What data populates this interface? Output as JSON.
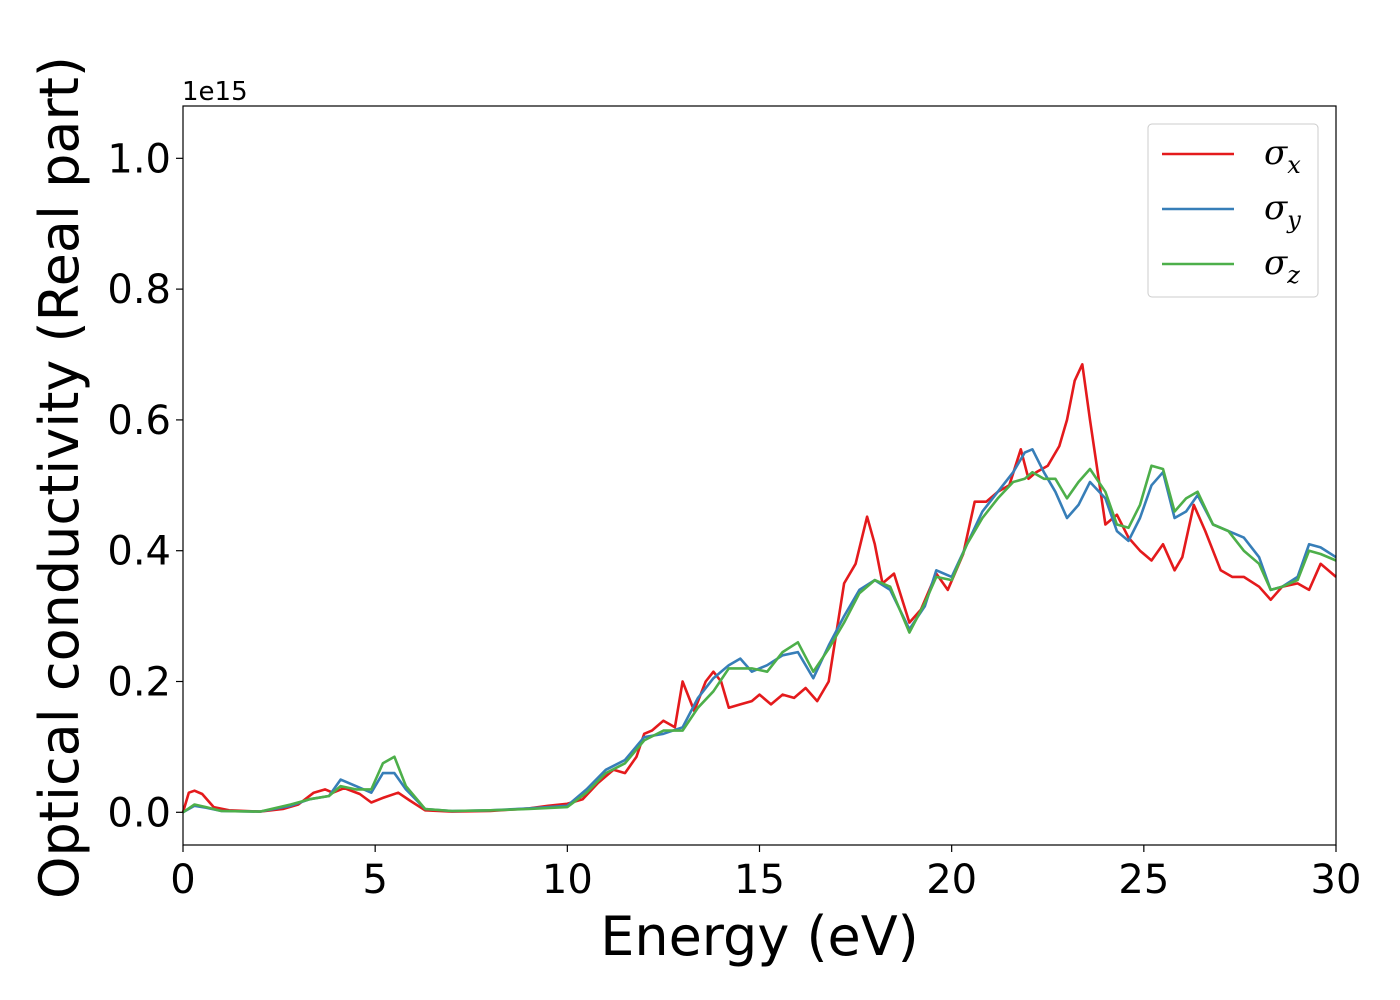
{
  "chart_data": {
    "type": "line",
    "xlabel": "Energy (eV)",
    "ylabel": "Optical conductivity (Real part)",
    "y_offset_label": "1e15",
    "xlim": [
      0,
      30
    ],
    "ylim": [
      -0.05,
      1.08
    ],
    "x_ticks": [
      0,
      5,
      10,
      15,
      20,
      25,
      30
    ],
    "x_tick_labels": [
      "0",
      "5",
      "10",
      "15",
      "20",
      "25",
      "30"
    ],
    "y_ticks": [
      0.0,
      0.2,
      0.4,
      0.6,
      0.8,
      1.0
    ],
    "y_tick_labels": [
      "0.0",
      "0.2",
      "0.4",
      "0.6",
      "0.8",
      "1.0"
    ],
    "grid": false,
    "legend_position": "top-right",
    "series": [
      {
        "name": "σx",
        "name_base": "σ",
        "name_sub": "x",
        "color": "#e41a1c",
        "x": [
          0,
          0.15,
          0.3,
          0.5,
          0.8,
          1.2,
          2.0,
          2.6,
          3.0,
          3.4,
          3.7,
          3.9,
          4.2,
          4.6,
          4.9,
          5.2,
          5.6,
          5.9,
          6.3,
          7.0,
          8.0,
          9.0,
          9.5,
          10.0,
          10.4,
          10.8,
          11.2,
          11.5,
          11.8,
          12.0,
          12.2,
          12.5,
          12.8,
          13.0,
          13.3,
          13.6,
          13.8,
          14.0,
          14.2,
          14.5,
          14.8,
          15.0,
          15.3,
          15.6,
          15.9,
          16.2,
          16.5,
          16.8,
          17.2,
          17.5,
          17.8,
          18.0,
          18.2,
          18.5,
          18.9,
          19.2,
          19.6,
          19.9,
          20.3,
          20.6,
          20.9,
          21.2,
          21.5,
          21.8,
          22.0,
          22.2,
          22.5,
          22.8,
          23.0,
          23.2,
          23.4,
          23.6,
          23.8,
          24.0,
          24.3,
          24.6,
          24.9,
          25.2,
          25.5,
          25.8,
          26.0,
          26.3,
          26.6,
          27.0,
          27.3,
          27.6,
          28.0,
          28.3,
          28.6,
          29.0,
          29.3,
          29.6,
          30.0
        ],
        "y": [
          0.0,
          0.03,
          0.033,
          0.028,
          0.008,
          0.003,
          0.001,
          0.005,
          0.012,
          0.03,
          0.035,
          0.03,
          0.037,
          0.028,
          0.015,
          0.022,
          0.03,
          0.018,
          0.003,
          0.001,
          0.002,
          0.006,
          0.01,
          0.013,
          0.02,
          0.045,
          0.065,
          0.06,
          0.085,
          0.12,
          0.125,
          0.14,
          0.13,
          0.2,
          0.155,
          0.2,
          0.215,
          0.2,
          0.16,
          0.165,
          0.17,
          0.18,
          0.165,
          0.18,
          0.175,
          0.19,
          0.17,
          0.2,
          0.35,
          0.38,
          0.452,
          0.41,
          0.35,
          0.365,
          0.29,
          0.31,
          0.365,
          0.34,
          0.395,
          0.475,
          0.475,
          0.49,
          0.5,
          0.555,
          0.51,
          0.52,
          0.53,
          0.56,
          0.6,
          0.66,
          0.685,
          0.6,
          0.52,
          0.44,
          0.455,
          0.42,
          0.4,
          0.385,
          0.41,
          0.37,
          0.39,
          0.47,
          0.43,
          0.37,
          0.36,
          0.36,
          0.345,
          0.325,
          0.345,
          0.35,
          0.34,
          0.38,
          0.36
        ]
      },
      {
        "name": "σy",
        "name_base": "σ",
        "name_sub": "y",
        "color": "#377eb8",
        "x": [
          0,
          0.3,
          0.6,
          1.0,
          2.0,
          2.8,
          3.3,
          3.8,
          4.1,
          4.5,
          4.9,
          5.2,
          5.5,
          5.8,
          6.3,
          7.0,
          8.0,
          9.0,
          10.0,
          10.5,
          11.0,
          11.5,
          12.0,
          12.5,
          13.0,
          13.4,
          13.8,
          14.2,
          14.5,
          14.8,
          15.2,
          15.6,
          16.0,
          16.4,
          16.8,
          17.2,
          17.6,
          18.0,
          18.4,
          18.9,
          19.3,
          19.6,
          20.0,
          20.4,
          20.8,
          21.2,
          21.6,
          21.9,
          22.1,
          22.4,
          22.7,
          23.0,
          23.3,
          23.6,
          24.0,
          24.3,
          24.6,
          24.9,
          25.2,
          25.5,
          25.8,
          26.1,
          26.4,
          26.8,
          27.2,
          27.6,
          28.0,
          28.3,
          28.6,
          29.0,
          29.3,
          29.6,
          30.0
        ],
        "y": [
          0.0,
          0.01,
          0.007,
          0.002,
          0.001,
          0.01,
          0.02,
          0.025,
          0.05,
          0.04,
          0.03,
          0.06,
          0.06,
          0.035,
          0.005,
          0.002,
          0.003,
          0.006,
          0.01,
          0.035,
          0.065,
          0.08,
          0.115,
          0.12,
          0.13,
          0.175,
          0.205,
          0.225,
          0.235,
          0.215,
          0.225,
          0.24,
          0.245,
          0.205,
          0.255,
          0.3,
          0.34,
          0.355,
          0.34,
          0.28,
          0.315,
          0.37,
          0.36,
          0.41,
          0.46,
          0.49,
          0.52,
          0.55,
          0.555,
          0.52,
          0.49,
          0.45,
          0.47,
          0.505,
          0.48,
          0.43,
          0.415,
          0.45,
          0.5,
          0.52,
          0.45,
          0.46,
          0.485,
          0.44,
          0.43,
          0.42,
          0.39,
          0.34,
          0.345,
          0.36,
          0.41,
          0.405,
          0.39
        ]
      },
      {
        "name": "σz",
        "name_base": "σ",
        "name_sub": "z",
        "color": "#4daf4a",
        "x": [
          0,
          0.3,
          0.6,
          1.0,
          2.0,
          2.8,
          3.3,
          3.8,
          4.1,
          4.5,
          4.9,
          5.2,
          5.5,
          5.8,
          6.3,
          7.0,
          8.0,
          9.0,
          10.0,
          10.5,
          11.0,
          11.5,
          12.0,
          12.5,
          13.0,
          13.4,
          13.8,
          14.2,
          14.5,
          14.8,
          15.2,
          15.6,
          16.0,
          16.4,
          16.8,
          17.2,
          17.6,
          18.0,
          18.4,
          18.9,
          19.3,
          19.6,
          20.0,
          20.4,
          20.8,
          21.2,
          21.6,
          21.9,
          22.1,
          22.4,
          22.7,
          23.0,
          23.3,
          23.6,
          24.0,
          24.3,
          24.6,
          24.9,
          25.2,
          25.5,
          25.8,
          26.1,
          26.4,
          26.8,
          27.2,
          27.6,
          28.0,
          28.3,
          28.6,
          29.0,
          29.3,
          29.6,
          30.0
        ],
        "y": [
          0.0,
          0.012,
          0.008,
          0.002,
          0.001,
          0.012,
          0.02,
          0.025,
          0.04,
          0.035,
          0.035,
          0.075,
          0.085,
          0.04,
          0.005,
          0.002,
          0.003,
          0.005,
          0.008,
          0.03,
          0.06,
          0.075,
          0.11,
          0.125,
          0.125,
          0.16,
          0.185,
          0.22,
          0.22,
          0.22,
          0.215,
          0.245,
          0.26,
          0.215,
          0.25,
          0.29,
          0.335,
          0.355,
          0.345,
          0.275,
          0.32,
          0.36,
          0.355,
          0.41,
          0.45,
          0.48,
          0.505,
          0.51,
          0.52,
          0.51,
          0.51,
          0.48,
          0.505,
          0.525,
          0.49,
          0.44,
          0.435,
          0.47,
          0.53,
          0.525,
          0.46,
          0.48,
          0.49,
          0.44,
          0.43,
          0.4,
          0.38,
          0.34,
          0.345,
          0.355,
          0.4,
          0.395,
          0.385
        ]
      }
    ]
  }
}
